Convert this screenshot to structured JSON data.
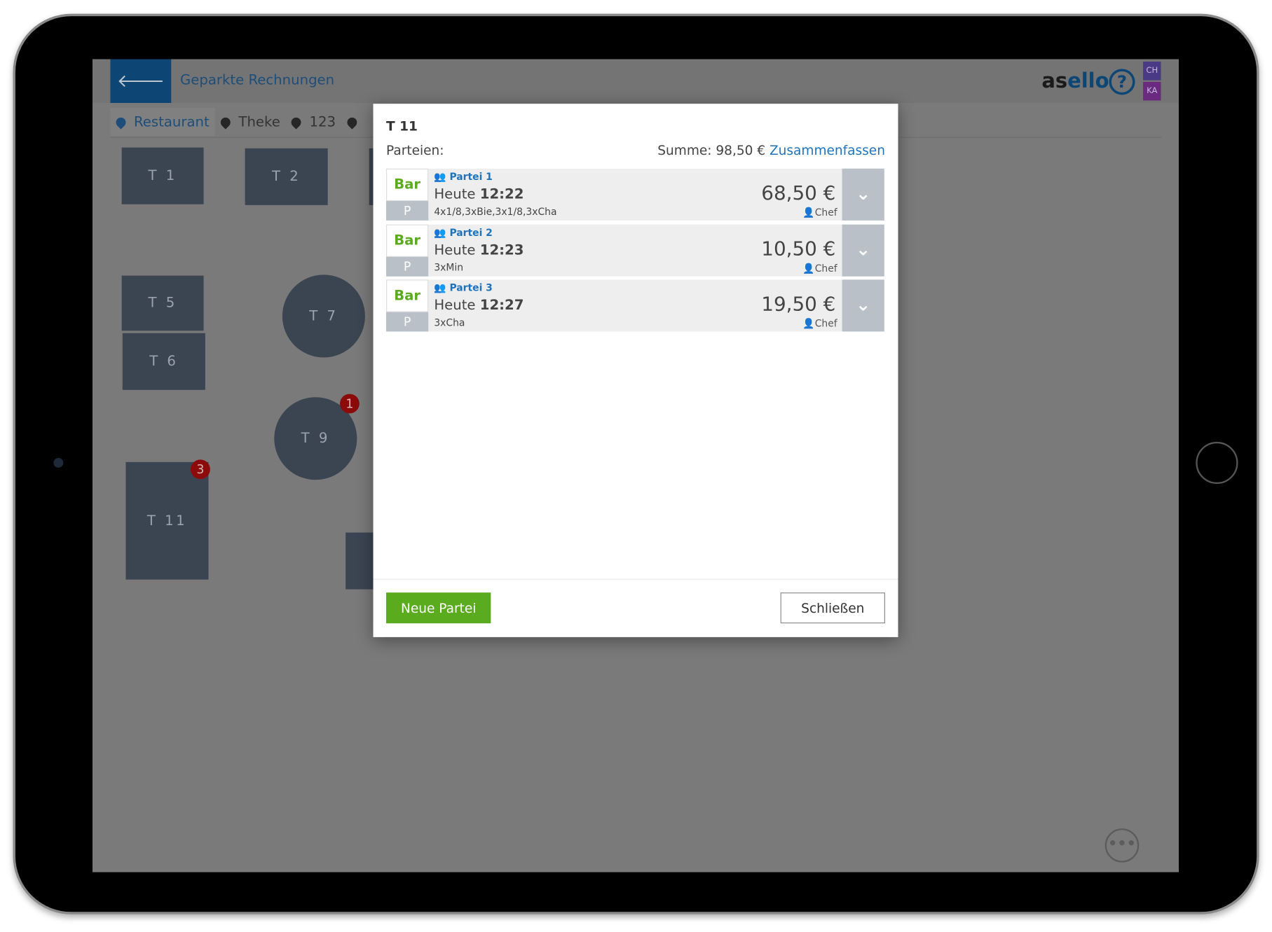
{
  "header": {
    "back_icon": "arrow-left-icon",
    "title": "Geparkte Rechnungen",
    "logo_a": "as",
    "logo_b": "ello",
    "help": "?",
    "users": [
      "CH",
      "KA"
    ],
    "user_colors": [
      "#4a3a85",
      "#6a2a80"
    ]
  },
  "tabs": [
    {
      "label": "Restaurant",
      "active": true
    },
    {
      "label": "Theke"
    },
    {
      "label": "123"
    },
    {
      "label": ""
    }
  ],
  "tables": [
    "T 1",
    "T 2",
    "T 5",
    "T 6",
    "T 7",
    "T 9",
    "T 11"
  ],
  "badges": {
    "t9": "1",
    "t11": "3"
  },
  "more": "•••",
  "modal": {
    "title": "T 11",
    "parteien_label": "Parteien:",
    "sum_label": "Summe: 98,50 €",
    "merge_link": "Zusammenfassen",
    "rows": [
      {
        "pay": "Bar",
        "flag": "P",
        "name": "Partei 1",
        "day": "Heute",
        "time": "12:22",
        "items": "4x1/8,3xBie,3x1/8,3xCha",
        "amount": "68,50 €",
        "user": "Chef"
      },
      {
        "pay": "Bar",
        "flag": "P",
        "name": "Partei 2",
        "day": "Heute",
        "time": "12:23",
        "items": "3xMin",
        "amount": "10,50 €",
        "user": "Chef"
      },
      {
        "pay": "Bar",
        "flag": "P",
        "name": "Partei 3",
        "day": "Heute",
        "time": "12:27",
        "items": "3xCha",
        "amount": "19,50 €",
        "user": "Chef"
      }
    ],
    "new_button": "Neue Partei",
    "close_button": "Schließen"
  },
  "colors": {
    "accent": "#1e73be",
    "green": "#5aab1e",
    "table": "#3b4552",
    "badge": "#8b0a0a"
  }
}
